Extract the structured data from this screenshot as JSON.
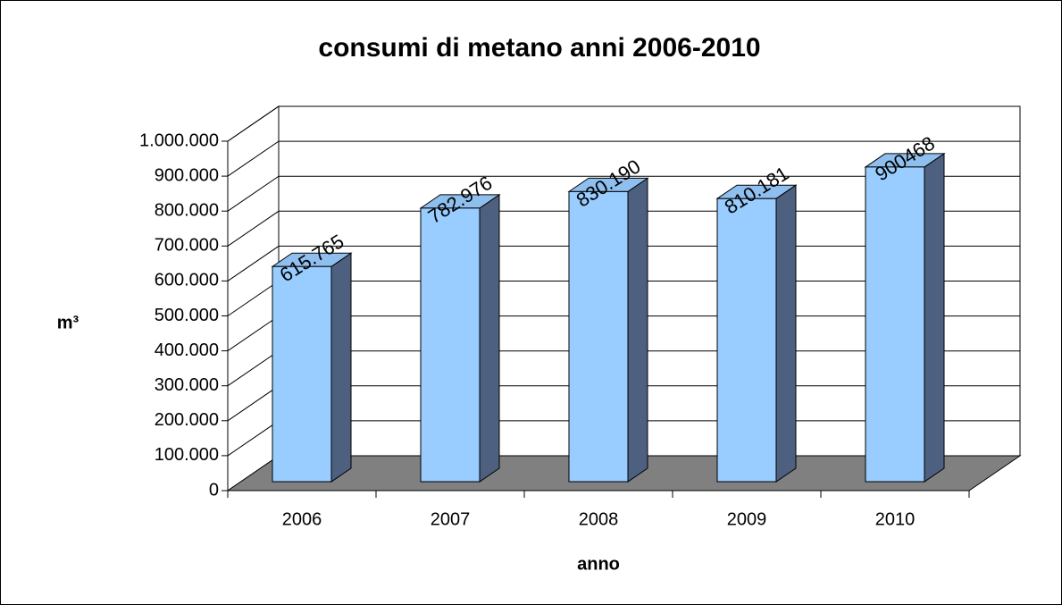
{
  "chart_data": {
    "type": "bar3d",
    "title": "consumi di metano anni 2006-2010",
    "x_label": "anno",
    "y_label": "m³",
    "categories": [
      "2006",
      "2007",
      "2008",
      "2009",
      "2010"
    ],
    "values": [
      615765,
      782976,
      830190,
      810181,
      900468
    ],
    "value_labels": [
      "615.765",
      "782.976",
      "830.190",
      "810.181",
      "900468"
    ],
    "color": "#99ccff",
    "ylim": [
      0,
      1000000
    ],
    "yticks": [
      0,
      {
        "value": 100000,
        "label": "100.000"
      },
      {
        "value": 200000,
        "label": "200.000"
      },
      {
        "value": 300000,
        "label": "300.000"
      },
      {
        "value": 400000,
        "label": "400.000"
      },
      {
        "value": 500000,
        "label": "500.000"
      },
      {
        "value": 600000,
        "label": "600.000"
      },
      {
        "value": 700000,
        "label": "700.000"
      },
      {
        "value": 800000,
        "label": "800.000"
      },
      {
        "value": 900000,
        "label": "900.000"
      },
      {
        "value": 1000000,
        "label": "1.000.000"
      }
    ],
    "grid": true
  }
}
